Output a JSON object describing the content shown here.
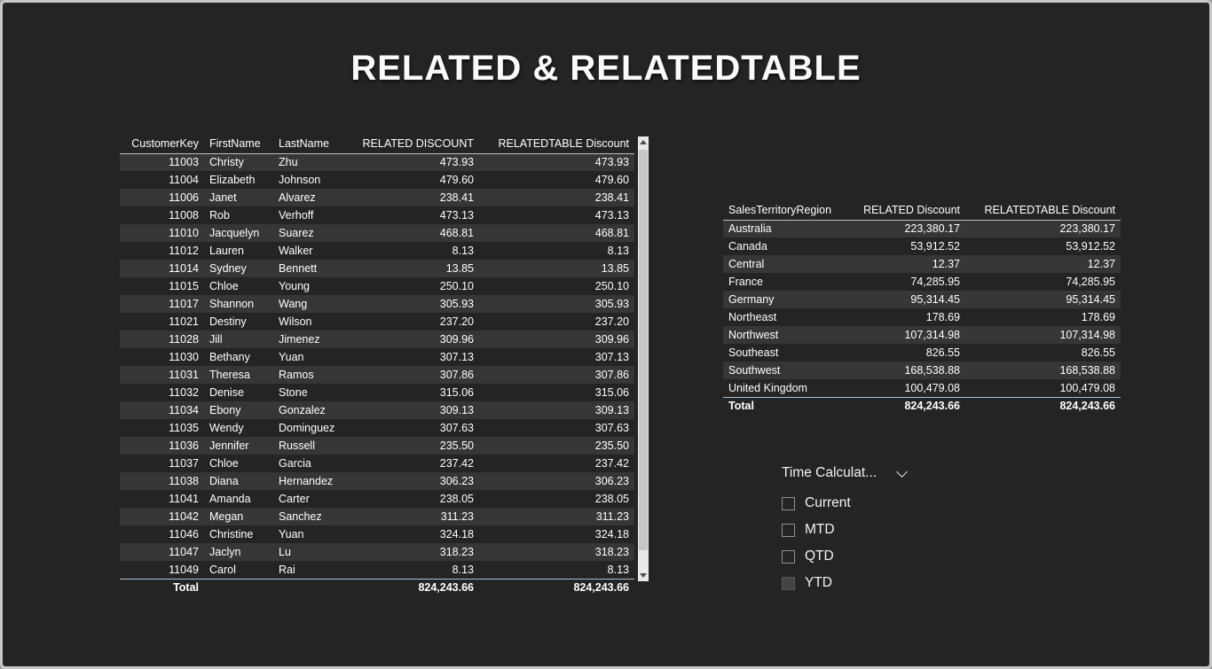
{
  "page": {
    "title": "RELATED & RELATEDTABLE"
  },
  "left_table": {
    "headers": [
      "CustomerKey",
      "FirstName",
      "LastName",
      "RELATED DISCOUNT",
      "RELATEDTABLE Discount"
    ],
    "rows": [
      [
        "11003",
        "Christy",
        "Zhu",
        "473.93",
        "473.93"
      ],
      [
        "11004",
        "Elizabeth",
        "Johnson",
        "479.60",
        "479.60"
      ],
      [
        "11006",
        "Janet",
        "Alvarez",
        "238.41",
        "238.41"
      ],
      [
        "11008",
        "Rob",
        "Verhoff",
        "473.13",
        "473.13"
      ],
      [
        "11010",
        "Jacquelyn",
        "Suarez",
        "468.81",
        "468.81"
      ],
      [
        "11012",
        "Lauren",
        "Walker",
        "8.13",
        "8.13"
      ],
      [
        "11014",
        "Sydney",
        "Bennett",
        "13.85",
        "13.85"
      ],
      [
        "11015",
        "Chloe",
        "Young",
        "250.10",
        "250.10"
      ],
      [
        "11017",
        "Shannon",
        "Wang",
        "305.93",
        "305.93"
      ],
      [
        "11021",
        "Destiny",
        "Wilson",
        "237.20",
        "237.20"
      ],
      [
        "11028",
        "Jill",
        "Jimenez",
        "309.96",
        "309.96"
      ],
      [
        "11030",
        "Bethany",
        "Yuan",
        "307.13",
        "307.13"
      ],
      [
        "11031",
        "Theresa",
        "Ramos",
        "307.86",
        "307.86"
      ],
      [
        "11032",
        "Denise",
        "Stone",
        "315.06",
        "315.06"
      ],
      [
        "11034",
        "Ebony",
        "Gonzalez",
        "309.13",
        "309.13"
      ],
      [
        "11035",
        "Wendy",
        "Dominguez",
        "307.63",
        "307.63"
      ],
      [
        "11036",
        "Jennifer",
        "Russell",
        "235.50",
        "235.50"
      ],
      [
        "11037",
        "Chloe",
        "Garcia",
        "237.42",
        "237.42"
      ],
      [
        "11038",
        "Diana",
        "Hernandez",
        "306.23",
        "306.23"
      ],
      [
        "11041",
        "Amanda",
        "Carter",
        "238.05",
        "238.05"
      ],
      [
        "11042",
        "Megan",
        "Sanchez",
        "311.23",
        "311.23"
      ],
      [
        "11046",
        "Christine",
        "Yuan",
        "324.18",
        "324.18"
      ],
      [
        "11047",
        "Jaclyn",
        "Lu",
        "318.23",
        "318.23"
      ],
      [
        "11049",
        "Carol",
        "Rai",
        "8.13",
        "8.13"
      ]
    ],
    "total": [
      "Total",
      "",
      "",
      "824,243.66",
      "824,243.66"
    ]
  },
  "right_table": {
    "headers": [
      "SalesTerritoryRegion",
      "RELATED Discount",
      "RELATEDTABLE Discount"
    ],
    "rows": [
      [
        "Australia",
        "223,380.17",
        "223,380.17"
      ],
      [
        "Canada",
        "53,912.52",
        "53,912.52"
      ],
      [
        "Central",
        "12.37",
        "12.37"
      ],
      [
        "France",
        "74,285.95",
        "74,285.95"
      ],
      [
        "Germany",
        "95,314.45",
        "95,314.45"
      ],
      [
        "Northeast",
        "178.69",
        "178.69"
      ],
      [
        "Northwest",
        "107,314.98",
        "107,314.98"
      ],
      [
        "Southeast",
        "826.55",
        "826.55"
      ],
      [
        "Southwest",
        "168,538.88",
        "168,538.88"
      ],
      [
        "United Kingdom",
        "100,479.08",
        "100,479.08"
      ]
    ],
    "total": [
      "Total",
      "824,243.66",
      "824,243.66"
    ]
  },
  "slicer": {
    "title": "Time Calculat...",
    "dropdown_icon": "chevron-down",
    "options": [
      {
        "label": "Current",
        "checked": false
      },
      {
        "label": "MTD",
        "checked": false
      },
      {
        "label": "QTD",
        "checked": false
      },
      {
        "label": "YTD",
        "checked": true
      }
    ]
  },
  "scrollbar": {
    "up_icon": "triangle-up",
    "down_icon": "triangle-down"
  },
  "colors": {
    "background": "#252423",
    "row_stripe": "#373635",
    "text": "#ffffff",
    "header_rule": "#bdbdbd",
    "total_rule": "#9bc2e6",
    "frame_border": "#c9c9c9"
  }
}
